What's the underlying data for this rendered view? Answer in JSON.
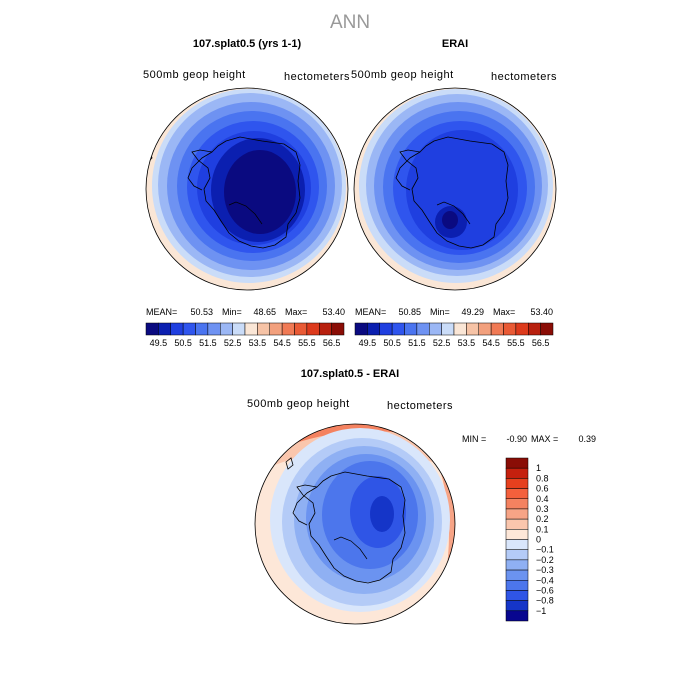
{
  "page": {
    "title": "ANN"
  },
  "panels": [
    {
      "title": "107.splat0.5 (yrs 1-1)",
      "left_label": "500mb geop height",
      "right_label": "hectometers",
      "stats": {
        "mean_label": "MEAN=",
        "mean": "50.53",
        "min_label": "Min=",
        "min": "48.65",
        "max_label": "Max=",
        "max": "53.40"
      }
    },
    {
      "title": "ERAI",
      "left_label": "500mb geop height",
      "right_label": "hectometers",
      "stats": {
        "mean_label": "MEAN=",
        "mean": "50.85",
        "min_label": "Min=",
        "min": "49.29",
        "max_label": "Max=",
        "max": "53.40"
      }
    },
    {
      "title": "107.splat0.5 - ERAI",
      "left_label": "500mb geop height",
      "right_label": "hectometers",
      "stats": {
        "min_label": "MIN =",
        "min": "-0.90",
        "max_label": "MAX =",
        "max": "0.39"
      }
    }
  ],
  "chart_data": [
    {
      "type": "heatmap",
      "projection": "south polar stereographic",
      "title": "107.splat0.5 (yrs 1-1)",
      "variable": "500mb geop height",
      "units": "hectometers",
      "mean": 50.53,
      "min": 48.65,
      "max": 53.4,
      "levels": [
        49.5,
        50,
        50.5,
        51,
        51.5,
        52,
        52.5,
        53,
        53.5,
        54,
        54.5,
        55,
        55.5,
        56,
        56.5
      ],
      "colorbar_labels": [
        "49.5",
        "50.5",
        "51.5",
        "52.5",
        "53.5",
        "54.5",
        "55.5",
        "56.5"
      ],
      "colors": [
        "#0a0a80",
        "#0b1fb0",
        "#1f3fe0",
        "#2f55ee",
        "#4a74f0",
        "#6e92f2",
        "#9bb7f5",
        "#cadcf8",
        "#fae6d6",
        "#f6c3a6",
        "#f2a07d",
        "#f07a55",
        "#e95a35",
        "#dd3a1c",
        "#b8200e",
        "#8a0d06"
      ]
    },
    {
      "type": "heatmap",
      "projection": "south polar stereographic",
      "title": "ERAI",
      "variable": "500mb geop height",
      "units": "hectometers",
      "mean": 50.85,
      "min": 49.29,
      "max": 53.4,
      "levels": [
        49.5,
        50,
        50.5,
        51,
        51.5,
        52,
        52.5,
        53,
        53.5,
        54,
        54.5,
        55,
        55.5,
        56,
        56.5
      ],
      "colorbar_labels": [
        "49.5",
        "50.5",
        "51.5",
        "52.5",
        "53.5",
        "54.5",
        "55.5",
        "56.5"
      ],
      "colors": [
        "#0a0a80",
        "#0b1fb0",
        "#1f3fe0",
        "#2f55ee",
        "#4a74f0",
        "#6e92f2",
        "#9bb7f5",
        "#cadcf8",
        "#fae6d6",
        "#f6c3a6",
        "#f2a07d",
        "#f07a55",
        "#e95a35",
        "#dd3a1c",
        "#b8200e",
        "#8a0d06"
      ]
    },
    {
      "type": "heatmap",
      "projection": "south polar stereographic",
      "title": "107.splat0.5 - ERAI",
      "variable": "500mb geop height",
      "units": "hectometers",
      "min": -0.9,
      "max": 0.39,
      "levels": [
        -1,
        -0.8,
        -0.6,
        -0.4,
        -0.3,
        -0.2,
        -0.1,
        0,
        0.1,
        0.2,
        0.3,
        0.4,
        0.6,
        0.8,
        1
      ],
      "colorbar_labels": [
        "1",
        "0.8",
        "0.6",
        "0.4",
        "0.3",
        "0.2",
        "0.1",
        "0",
        "−0.1",
        "−0.2",
        "−0.3",
        "−0.4",
        "−0.6",
        "−0.8",
        "−1"
      ],
      "colors": [
        "#8a0d06",
        "#c5200e",
        "#e6401e",
        "#f4603c",
        "#f48260",
        "#f7a486",
        "#fac6ad",
        "#fde7d8",
        "#d9e6fb",
        "#b4cbf7",
        "#8fb0f3",
        "#6b93f0",
        "#4c76ec",
        "#2f55e6",
        "#1535c8",
        "#08068f"
      ]
    }
  ]
}
